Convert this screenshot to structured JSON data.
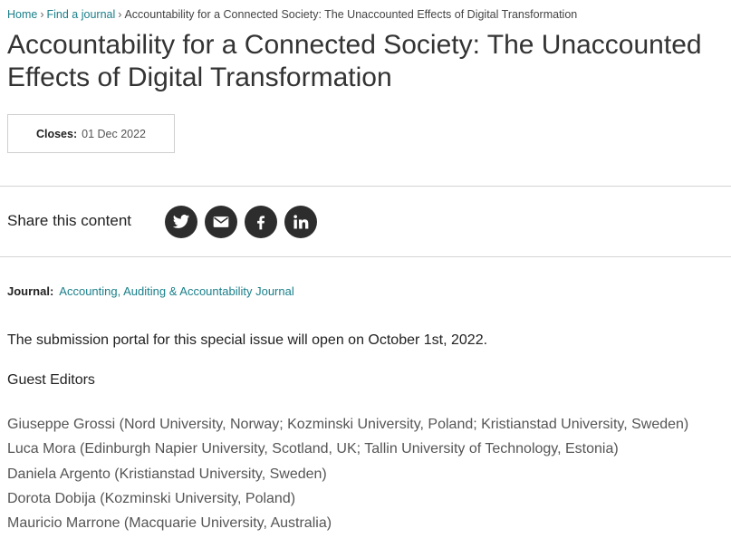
{
  "breadcrumb": {
    "items": [
      "Home",
      "Find a journal"
    ],
    "current": "Accountability for a Connected Society: The Unaccounted Effects of Digital Transformation",
    "separator": "›"
  },
  "title": "Accountability for a Connected Society: The Unaccounted Effects of Digital Transformation",
  "closes": {
    "label": "Closes:",
    "value": "01 Dec 2022"
  },
  "share": {
    "label": "Share this content",
    "icons": [
      "twitter-icon",
      "email-icon",
      "facebook-icon",
      "linkedin-icon"
    ],
    "icon_color": "#2d2d2d"
  },
  "journal": {
    "label": "Journal:",
    "name": "Accounting, Auditing & Accountability Journal"
  },
  "portal_text": "The submission portal for this special issue will open on October 1st, 2022.",
  "editors": {
    "heading": "Guest Editors",
    "list": [
      "Giuseppe Grossi (Nord University, Norway; Kozminski University, Poland; Kristianstad University, Sweden)",
      "Luca Mora (Edinburgh Napier University, Scotland, UK; Tallin University of Technology, Estonia)",
      "Daniela Argento (Kristianstad University, Sweden)",
      "Dorota Dobija (Kozminski University, Poland)",
      "Mauricio Marrone (Macquarie University, Australia)"
    ]
  },
  "colors": {
    "link": "#1a7f8a",
    "text": "#222222",
    "muted": "#555555",
    "rule": "#d4d4d4"
  }
}
